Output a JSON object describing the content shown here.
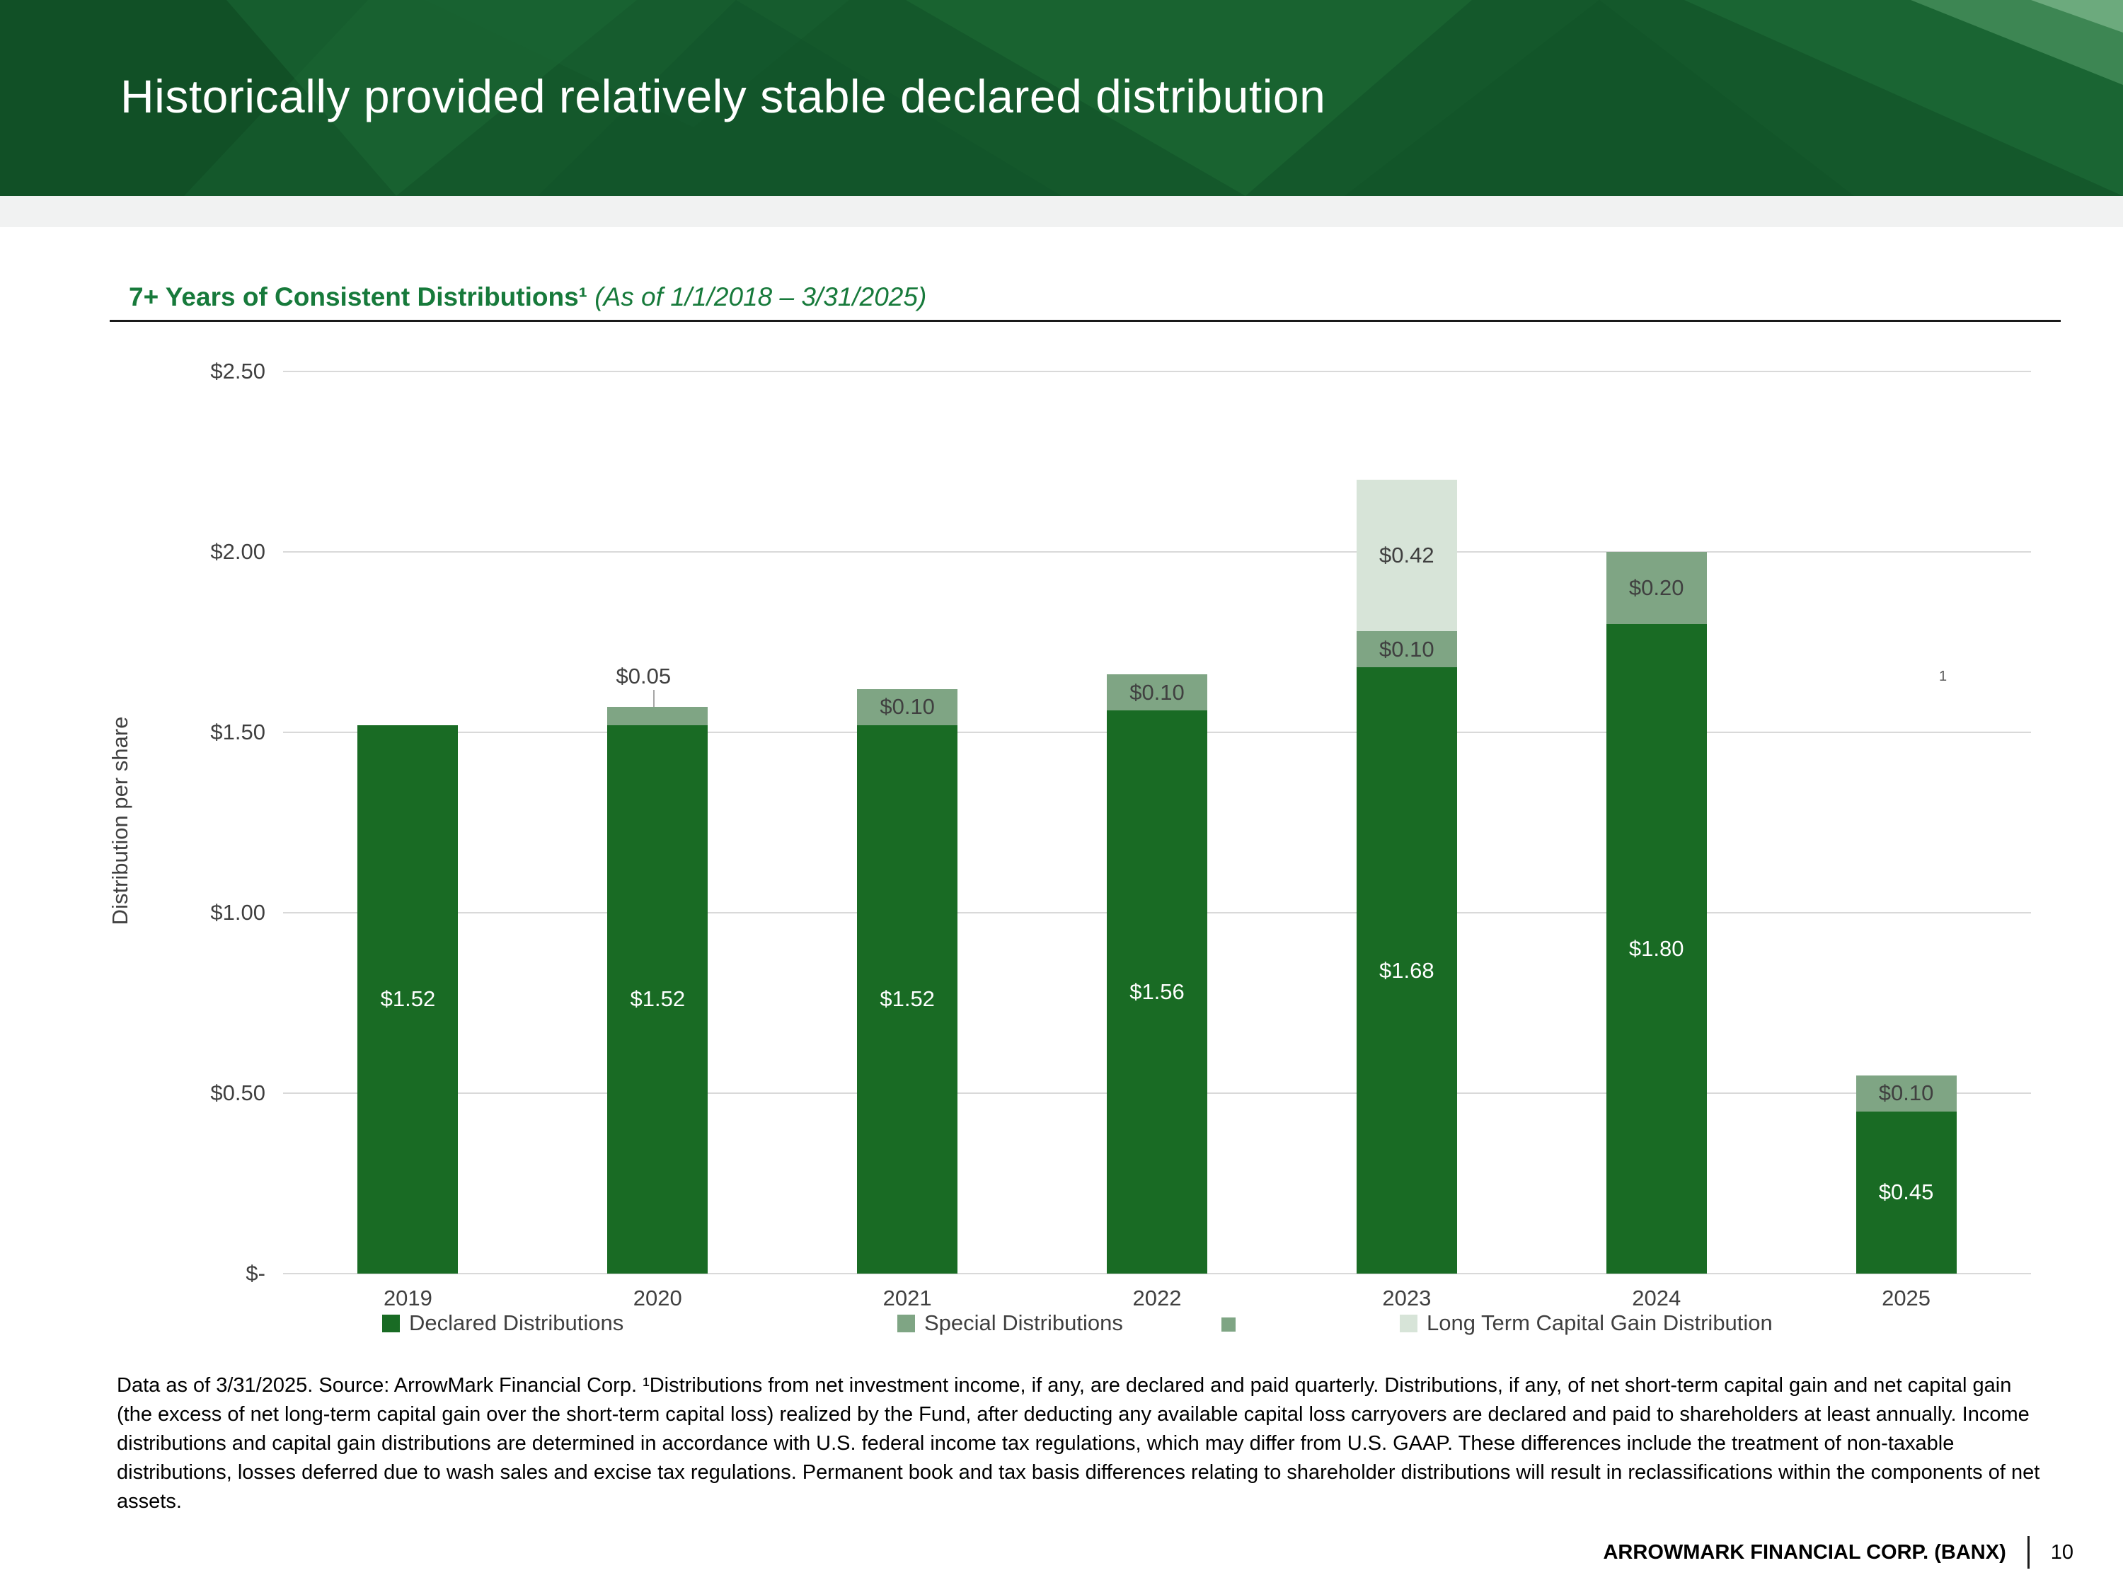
{
  "header": {
    "title": "Historically provided relatively stable declared distribution"
  },
  "section": {
    "heading_bold": "7+ Years of Consistent Distributions¹",
    "heading_italic": " (As of 1/1/2018 – 3/31/2025)"
  },
  "chart_data": {
    "type": "bar",
    "stacked": true,
    "title": "7+ Years of Consistent Distributions (As of 1/1/2018 – 3/31/2025)",
    "xlabel": "",
    "ylabel": "Distribution per share",
    "ylim": [
      0,
      2.5
    ],
    "grid": true,
    "legend_position": "bottom",
    "categories": [
      "2019",
      "2020",
      "2021",
      "2022",
      "2023",
      "2024",
      "2025"
    ],
    "y_ticks": [
      {
        "label": "$2.50",
        "value": 2.5
      },
      {
        "label": "$2.00",
        "value": 2.0
      },
      {
        "label": "$1.50",
        "value": 1.5
      },
      {
        "label": "$1.00",
        "value": 1.0
      },
      {
        "label": "$0.50",
        "value": 0.5
      },
      {
        "label": "$-",
        "value": 0
      }
    ],
    "series": [
      {
        "name": "Declared Distributions",
        "color": "#196b24",
        "label_color": "#ffffff",
        "values": [
          1.52,
          1.52,
          1.52,
          1.56,
          1.68,
          1.8,
          0.45
        ],
        "labels": [
          "$1.52",
          "$1.52",
          "$1.52",
          "$1.56",
          "$1.68",
          "$1.80",
          "$0.45"
        ]
      },
      {
        "name": "Special Distributions",
        "color": "#7fa584",
        "label_color": "#404040",
        "values": [
          0,
          0.05,
          0.1,
          0.1,
          0.1,
          0.2,
          0.1
        ],
        "labels": [
          "",
          "$0.05",
          "$0.10",
          "$0.10",
          "$0.10",
          "$0.20",
          "$0.10"
        ]
      },
      {
        "name": "Long Term Capital Gain Distribution",
        "color": "#d7e4d8",
        "label_color": "#404040",
        "values": [
          0,
          0,
          0,
          0,
          0.42,
          0,
          0
        ],
        "labels": [
          "",
          "",
          "",
          "",
          "$0.42",
          "",
          ""
        ]
      }
    ],
    "annotation": {
      "text": "1"
    }
  },
  "footnote": "Data as of 3/31/2025. Source: ArrowMark Financial Corp. ¹Distributions from net investment income, if any, are declared and paid quarterly. Distributions, if any, of net short-term capital gain and net capital gain (the excess of net long-term capital gain over the short-term capital loss) realized by the Fund, after deducting any available capital loss carryovers are declared and paid to shareholders at least annually. Income distributions and capital gain distributions are determined in accordance with U.S. federal income tax regulations, which may differ from U.S. GAAP. These differences include the treatment of non-taxable distributions, losses deferred due to wash sales and excise tax regulations. Permanent book and tax basis differences relating to shareholder distributions will result in reclassifications within the components of net assets.",
  "footer": {
    "company": "ARROWMARK FINANCIAL CORP. (BANX)",
    "page_number": "10"
  },
  "colors": {
    "header_green": "#14582b",
    "section_heading_green": "#177a3b",
    "gridline": "#d9d9d9",
    "axis_text": "#404040"
  }
}
